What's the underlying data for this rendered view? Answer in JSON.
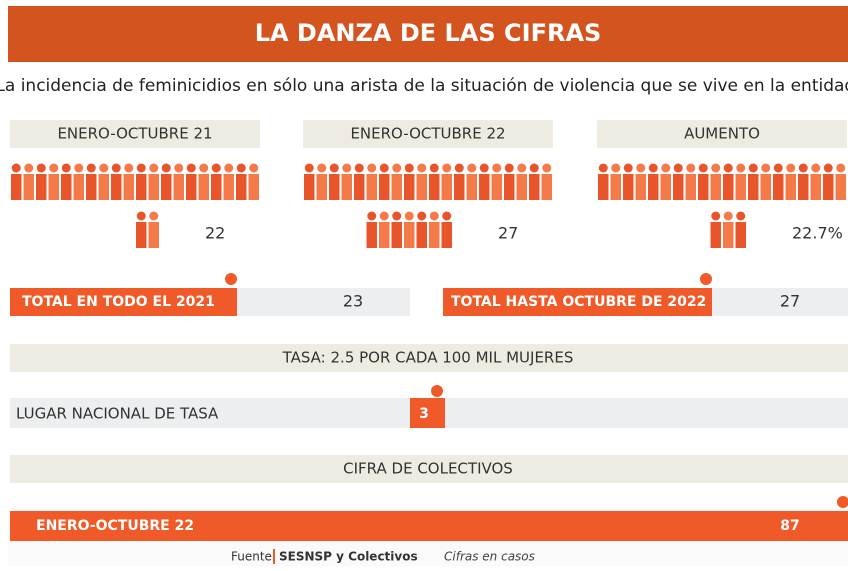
{
  "header": {
    "title": "LA DANZA DE LAS CIFRAS",
    "subtitle": "La incidencia de feminicidios en sólo una arista de la situación de violencia que se vive en la entidad."
  },
  "panels": [
    {
      "label": "ENERO-OCTUBRE 21",
      "value": 22
    },
    {
      "label": "ENERO-OCTUBRE 22",
      "value": 27
    },
    {
      "label": "AUMENTO",
      "value": 22.7,
      "value_label": "22.7%"
    }
  ],
  "totals": [
    {
      "label": "TOTAL EN TODO EL 2021",
      "value": 23
    },
    {
      "label": "TOTAL HASTA OCTUBRE DE 2022",
      "value": 27
    }
  ],
  "rate": {
    "title": "TASA: 2.5 POR CADA 100 MIL MUJERES",
    "label": "LUGAR NACIONAL DE TASA",
    "value": 3
  },
  "collectives": {
    "title": "CIFRA DE COLECTIVOS",
    "label": "ENERO-OCTUBRE 22",
    "value": 87
  },
  "footer": {
    "source_label": "Fuente",
    "source": "SESNSP y Colectivos",
    "note": "Cifras en casos"
  }
}
